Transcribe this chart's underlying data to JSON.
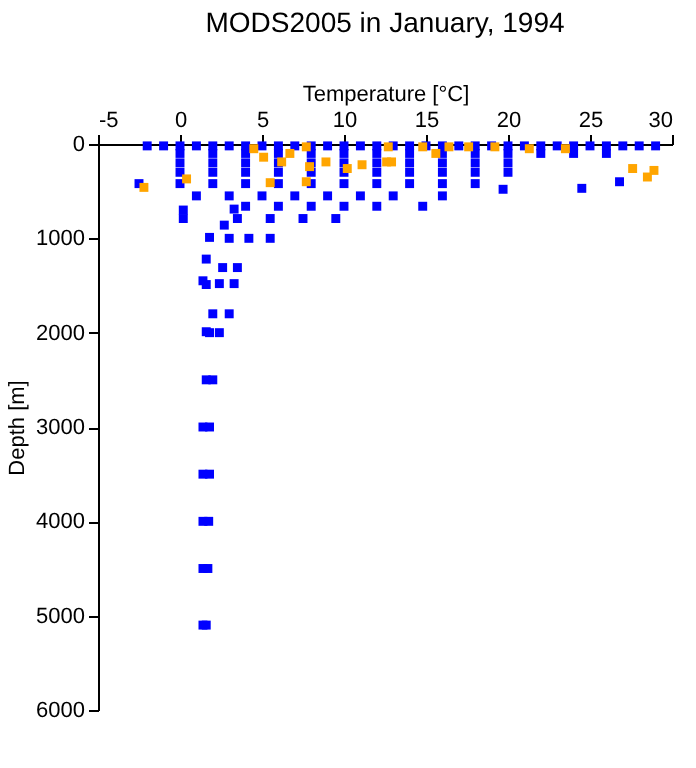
{
  "chart_data": {
    "type": "scatter",
    "title": "MODS2005 in January, 1994",
    "xlabel": "Temperature [°C]",
    "ylabel": "Depth [m]",
    "xlim": [
      -5,
      30
    ],
    "xticks": [
      -5,
      0,
      5,
      10,
      15,
      20,
      25,
      30
    ],
    "ylim": [
      6000,
      0
    ],
    "yticks": [
      0,
      1000,
      2000,
      3000,
      4000,
      5000,
      6000
    ],
    "marker": "square",
    "series": [
      {
        "color": "#0000ff",
        "x": [
          -2,
          -1,
          0,
          1,
          2,
          3,
          4,
          5,
          6,
          7,
          8,
          9,
          10,
          11,
          12,
          13,
          14,
          15,
          16,
          17,
          18,
          19,
          20,
          21,
          22,
          23,
          24,
          25,
          26,
          27,
          28,
          29,
          0,
          2,
          4,
          6,
          8,
          10,
          12,
          14,
          16,
          18,
          20,
          22,
          24,
          26,
          0,
          2,
          4,
          6,
          8,
          10,
          12,
          14,
          16,
          18,
          20,
          0,
          2,
          4,
          6,
          8,
          10,
          12,
          14,
          16,
          18,
          20,
          0,
          2,
          4,
          6,
          8,
          10,
          12,
          14,
          16,
          18,
          19.7,
          1,
          3,
          5,
          7,
          9,
          11,
          13,
          16,
          4,
          6,
          8,
          10,
          12,
          14.8,
          3.5,
          5.5,
          7.5,
          9.5,
          3.0,
          4.2,
          5.5,
          2.6,
          3.5,
          2.4,
          3.3,
          2.0,
          3.0,
          1.8,
          2.4,
          1.6,
          2.0,
          1.4,
          1.8,
          1.4,
          1.8,
          1.4,
          1.75,
          1.4,
          1.7,
          1.4,
          1.6,
          -2.5,
          0.2,
          0.2,
          24.5,
          26.8,
          1.6,
          1.4,
          1.8,
          2.7,
          3.3,
          1.6,
          1.6
        ],
        "values": [
          20,
          20,
          20,
          20,
          20,
          20,
          20,
          20,
          20,
          20,
          20,
          20,
          20,
          20,
          20,
          20,
          20,
          20,
          20,
          20,
          20,
          20,
          20,
          20,
          20,
          20,
          20,
          20,
          20,
          20,
          20,
          20,
          100,
          100,
          100,
          100,
          100,
          100,
          100,
          100,
          100,
          100,
          100,
          100,
          100,
          100,
          200,
          200,
          200,
          200,
          200,
          200,
          200,
          200,
          200,
          200,
          200,
          300,
          300,
          300,
          300,
          300,
          300,
          300,
          300,
          300,
          300,
          300,
          420,
          420,
          420,
          420,
          420,
          420,
          420,
          420,
          420,
          420,
          480,
          550,
          550,
          550,
          550,
          550,
          550,
          550,
          550,
          660,
          660,
          660,
          660,
          660,
          660,
          790,
          790,
          790,
          790,
          1000,
          1000,
          1000,
          1310,
          1310,
          1480,
          1480,
          1800,
          1800,
          2000,
          2000,
          2500,
          2500,
          3000,
          3000,
          3500,
          3500,
          4000,
          4000,
          4500,
          4500,
          5100,
          5100,
          420,
          790,
          700,
          470,
          400,
          1220,
          1450,
          990,
          860,
          690,
          1490,
          1990
        ]
      },
      {
        "color": "#ffa500",
        "x": [
          4.5,
          5.1,
          6.2,
          6.7,
          5.5,
          7.7,
          7.7,
          7.9,
          8.9,
          10.2,
          11.1,
          12.6,
          12.9,
          12.7,
          14.8,
          15.6,
          16.4,
          17.6,
          19.2,
          21.3,
          23.5,
          27.6,
          28.5,
          28.9,
          -2.2,
          0.4
        ],
        "values": [
          50,
          140,
          190,
          100,
          410,
          400,
          30,
          240,
          190,
          260,
          220,
          190,
          190,
          30,
          30,
          100,
          30,
          30,
          30,
          50,
          50,
          260,
          350,
          280,
          460,
          370
        ]
      }
    ]
  }
}
